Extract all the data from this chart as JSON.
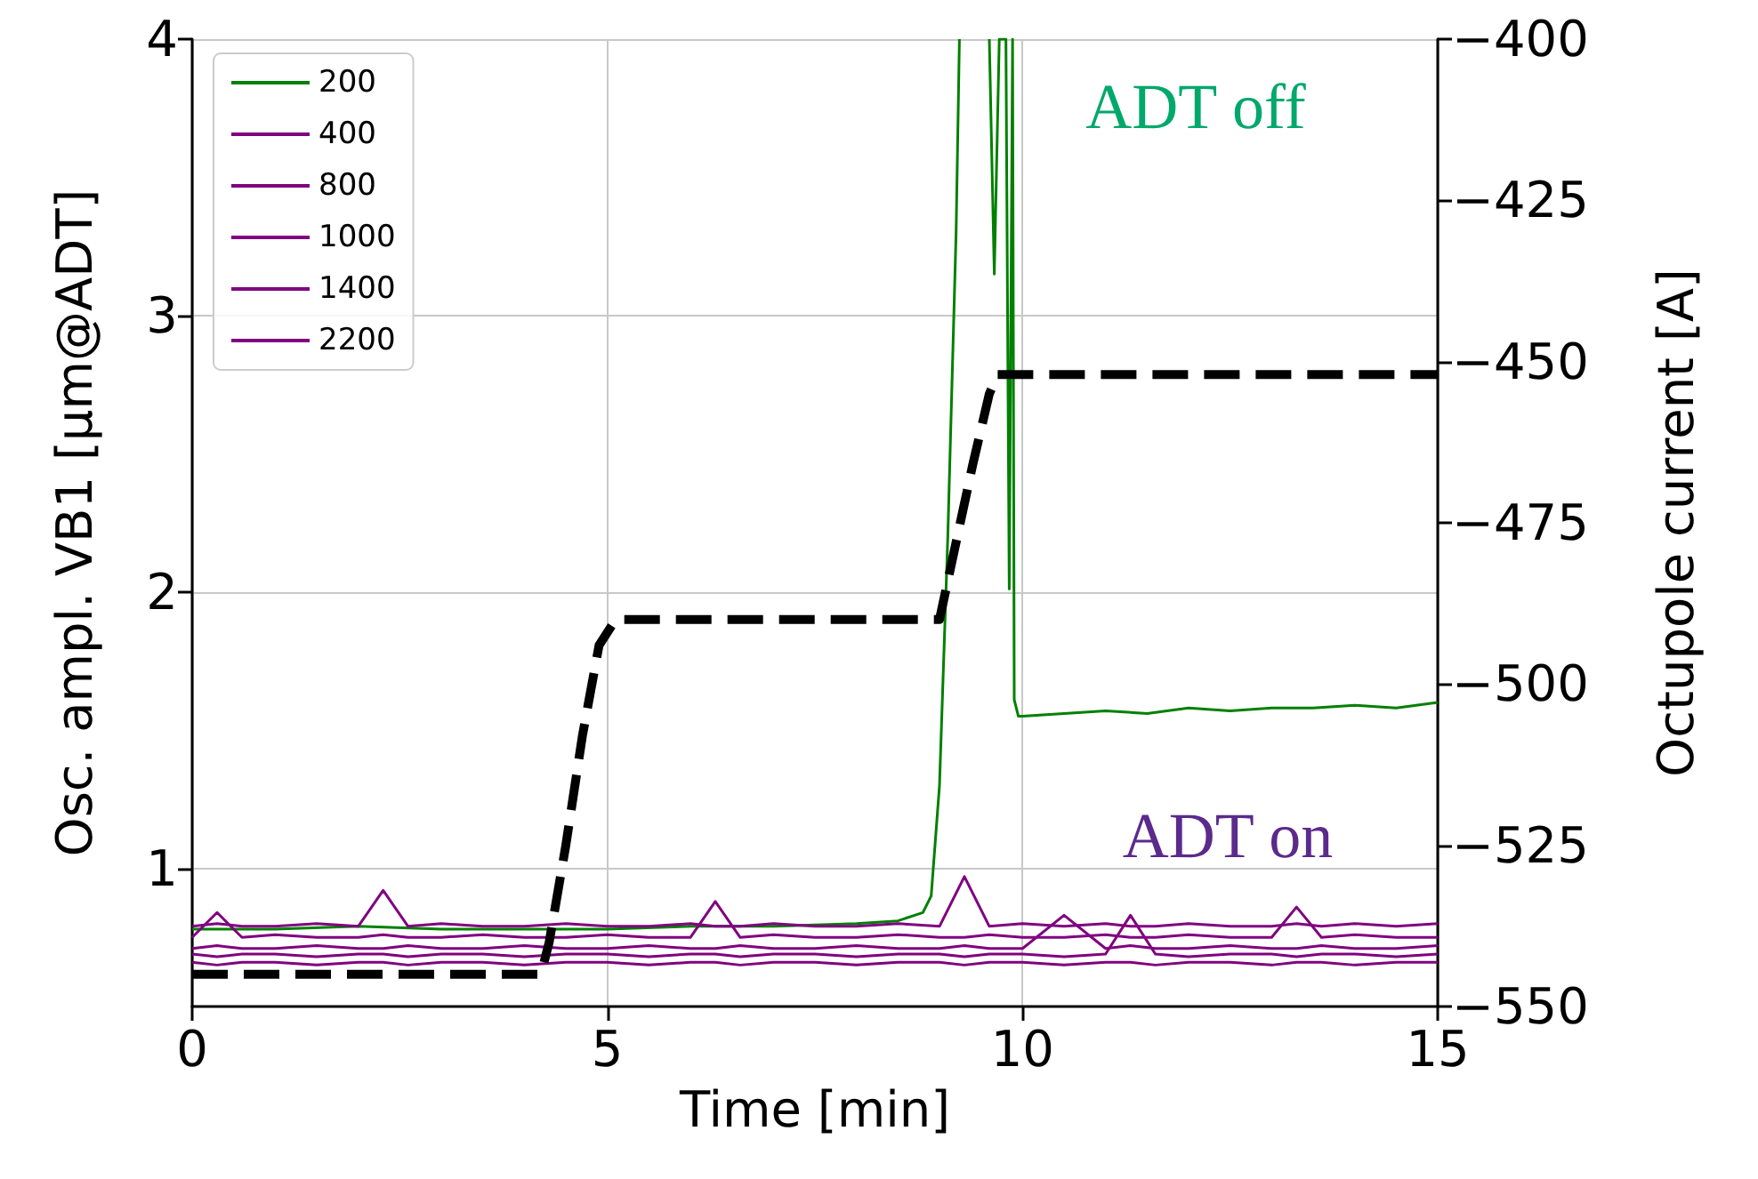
{
  "chart_data": {
    "type": "line",
    "xlabel": "Time [min]",
    "ylabel": "Osc. ampl. VB1 [μm@ADT]",
    "y2label": "Octupole current [A]",
    "annotations": [
      "ADT off",
      "ADT on"
    ],
    "x": [
      0,
      0.3,
      0.6,
      1,
      1.5,
      2,
      2.3,
      2.6,
      3,
      3.5,
      4,
      4.5,
      5,
      5.5,
      6,
      6.3,
      6.6,
      7,
      7.5,
      8,
      8.5,
      9,
      9.3,
      9.6,
      10,
      10.5,
      11,
      11.3,
      11.6,
      12,
      12.5,
      13,
      13.3,
      13.6,
      14,
      14.5,
      15
    ],
    "series": [
      {
        "name": "200",
        "color": "#008000",
        "x": [
          0,
          1,
          2,
          3,
          4,
          5,
          6,
          7,
          8,
          8.5,
          8.8,
          8.9,
          9.0,
          9.1,
          9.2,
          9.24,
          9.25,
          9.6,
          9.66,
          9.72,
          9.8,
          9.84,
          9.88,
          9.9,
          9.95,
          10,
          10.5,
          11,
          11.5,
          12,
          12.5,
          13,
          13.5,
          14,
          14.5,
          15
        ],
        "values": [
          0.78,
          0.78,
          0.79,
          0.78,
          0.78,
          0.78,
          0.79,
          0.79,
          0.8,
          0.81,
          0.84,
          0.9,
          1.3,
          2.2,
          3.3,
          4,
          null,
          4,
          3.15,
          4,
          4,
          2.01,
          4,
          1.61,
          1.55,
          1.55,
          1.56,
          1.57,
          1.56,
          1.58,
          1.57,
          1.58,
          1.58,
          1.59,
          1.58,
          1.6
        ]
      },
      {
        "name": "400",
        "color": "#800080",
        "values": [
          0.79,
          0.8,
          0.79,
          0.79,
          0.8,
          0.79,
          0.92,
          0.79,
          0.8,
          0.79,
          0.79,
          0.8,
          0.79,
          0.79,
          0.8,
          0.79,
          0.79,
          0.8,
          0.79,
          0.79,
          0.8,
          0.79,
          0.97,
          0.79,
          0.8,
          0.79,
          0.8,
          0.79,
          0.79,
          0.8,
          0.79,
          0.79,
          0.8,
          0.79,
          0.8,
          0.79,
          0.8
        ]
      },
      {
        "name": "800",
        "color": "#800080",
        "values": [
          0.75,
          0.84,
          0.75,
          0.76,
          0.75,
          0.75,
          0.76,
          0.75,
          0.75,
          0.76,
          0.75,
          0.75,
          0.76,
          0.75,
          0.75,
          0.88,
          0.75,
          0.76,
          0.75,
          0.75,
          0.76,
          0.75,
          0.75,
          0.76,
          0.75,
          0.75,
          0.76,
          0.75,
          0.75,
          0.76,
          0.75,
          0.75,
          0.86,
          0.75,
          0.76,
          0.75,
          0.75
        ]
      },
      {
        "name": "1000",
        "color": "#800080",
        "values": [
          0.71,
          0.72,
          0.71,
          0.71,
          0.72,
          0.71,
          0.71,
          0.72,
          0.71,
          0.71,
          0.72,
          0.71,
          0.71,
          0.72,
          0.71,
          0.71,
          0.72,
          0.71,
          0.71,
          0.72,
          0.71,
          0.71,
          0.72,
          0.71,
          0.71,
          0.83,
          0.71,
          0.72,
          0.71,
          0.71,
          0.72,
          0.71,
          0.71,
          0.72,
          0.71,
          0.71,
          0.72
        ]
      },
      {
        "name": "1400",
        "color": "#800080",
        "values": [
          0.69,
          0.68,
          0.69,
          0.69,
          0.68,
          0.69,
          0.69,
          0.68,
          0.69,
          0.69,
          0.68,
          0.69,
          0.69,
          0.68,
          0.69,
          0.69,
          0.68,
          0.69,
          0.69,
          0.68,
          0.69,
          0.69,
          0.68,
          0.69,
          0.69,
          0.68,
          0.69,
          0.83,
          0.69,
          0.68,
          0.69,
          0.69,
          0.68,
          0.69,
          0.69,
          0.68,
          0.69
        ]
      },
      {
        "name": "2200",
        "color": "#800080",
        "values": [
          0.66,
          0.65,
          0.66,
          0.66,
          0.65,
          0.66,
          0.66,
          0.65,
          0.66,
          0.66,
          0.65,
          0.66,
          0.66,
          0.65,
          0.66,
          0.66,
          0.65,
          0.66,
          0.66,
          0.65,
          0.66,
          0.66,
          0.65,
          0.66,
          0.66,
          0.65,
          0.66,
          0.66,
          0.65,
          0.66,
          0.66,
          0.65,
          0.66,
          0.66,
          0.65,
          0.66,
          0.66
        ]
      },
      {
        "color": "#000000",
        "axis": "y2",
        "line_style": "dashed",
        "x": [
          0,
          4.2,
          4.3,
          4.5,
          4.7,
          4.9,
          5.1,
          9.0,
          9.2,
          9.4,
          9.6,
          9.7,
          15
        ],
        "values": [
          -545,
          -545,
          -540,
          -525,
          -508,
          -494,
          -490,
          -490,
          -478,
          -466,
          -455,
          -452,
          -452
        ]
      }
    ],
    "xlim": [
      0,
      15
    ],
    "xticks": [
      0,
      5,
      10,
      15
    ],
    "ylim": [
      0.5,
      4
    ],
    "yticks": [
      1,
      2,
      3,
      4
    ],
    "y2lim": [
      -550,
      -400
    ],
    "y2ticks": [
      {
        "value": -550,
        "label": "−550"
      },
      {
        "value": -525,
        "label": "−525"
      },
      {
        "value": -500,
        "label": "−500"
      },
      {
        "value": -475,
        "label": "−475"
      },
      {
        "value": -450,
        "label": "−450"
      },
      {
        "value": -425,
        "label": "−425"
      },
      {
        "value": -400,
        "label": "−400"
      }
    ],
    "grid": true,
    "legend": "top left",
    "marker": "none",
    "line_style": "solid"
  }
}
